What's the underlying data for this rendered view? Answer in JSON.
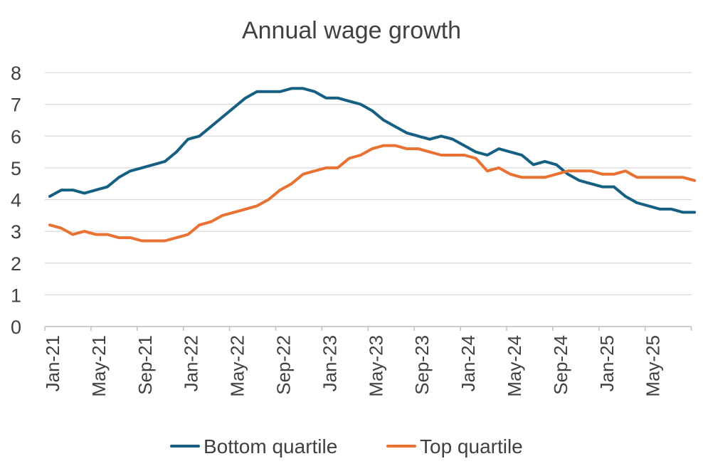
{
  "chart_data": {
    "type": "line",
    "title": "Annual wage growth",
    "xlabel": "",
    "ylabel": "",
    "ylim": [
      0,
      8
    ],
    "yticks": [
      "0",
      "1",
      "2",
      "3",
      "4",
      "5",
      "6",
      "7",
      "8"
    ],
    "x": [
      "Jan-21",
      "Feb-21",
      "Mar-21",
      "Apr-21",
      "May-21",
      "Jun-21",
      "Jul-21",
      "Aug-21",
      "Sep-21",
      "Oct-21",
      "Nov-21",
      "Dec-21",
      "Jan-22",
      "Feb-22",
      "Mar-22",
      "Apr-22",
      "May-22",
      "Jun-22",
      "Jul-22",
      "Aug-22",
      "Sep-22",
      "Oct-22",
      "Nov-22",
      "Dec-22",
      "Jan-23",
      "Feb-23",
      "Mar-23",
      "Apr-23",
      "May-23",
      "Jun-23",
      "Jul-23",
      "Aug-23",
      "Sep-23",
      "Oct-23",
      "Nov-23",
      "Dec-23",
      "Jan-24",
      "Feb-24",
      "Mar-24",
      "Apr-24",
      "May-24",
      "Jun-24",
      "Jul-24",
      "Aug-24",
      "Sep-24",
      "Oct-24",
      "Nov-24",
      "Dec-24",
      "Jan-25",
      "Feb-25",
      "Mar-25",
      "Apr-25",
      "May-25",
      "Jun-25",
      "Jul-25",
      "Aug-25",
      "Sep-25"
    ],
    "xtick_labels": [
      "Jan-21",
      "May-21",
      "Sep-21",
      "Jan-22",
      "May-22",
      "Sep-22",
      "Jan-23",
      "May-23",
      "Sep-23",
      "Jan-24",
      "May-24",
      "Sep-24",
      "Jan-25",
      "May-25"
    ],
    "series": [
      {
        "name": "Bottom quartile",
        "color": "#156082",
        "values": [
          4.1,
          4.3,
          4.3,
          4.2,
          4.3,
          4.4,
          4.7,
          4.9,
          5.0,
          5.1,
          5.2,
          5.5,
          5.9,
          6.0,
          6.3,
          6.6,
          6.9,
          7.2,
          7.4,
          7.4,
          7.4,
          7.5,
          7.5,
          7.4,
          7.2,
          7.2,
          7.1,
          7.0,
          6.8,
          6.5,
          6.3,
          6.1,
          6.0,
          5.9,
          6.0,
          5.9,
          5.7,
          5.5,
          5.4,
          5.6,
          5.5,
          5.4,
          5.1,
          5.2,
          5.1,
          4.8,
          4.6,
          4.5,
          4.4,
          4.4,
          4.1,
          3.9,
          3.8,
          3.7,
          3.7,
          3.6,
          3.6
        ]
      },
      {
        "name": "Top quartile",
        "color": "#E97132",
        "values": [
          3.2,
          3.1,
          2.9,
          3.0,
          2.9,
          2.9,
          2.8,
          2.8,
          2.7,
          2.7,
          2.7,
          2.8,
          2.9,
          3.2,
          3.3,
          3.5,
          3.6,
          3.7,
          3.8,
          4.0,
          4.3,
          4.5,
          4.8,
          4.9,
          5.0,
          5.0,
          5.3,
          5.4,
          5.6,
          5.7,
          5.7,
          5.6,
          5.6,
          5.5,
          5.4,
          5.4,
          5.4,
          5.3,
          4.9,
          5.0,
          4.8,
          4.7,
          4.7,
          4.7,
          4.8,
          4.9,
          4.9,
          4.9,
          4.8,
          4.8,
          4.9,
          4.7,
          4.7,
          4.7,
          4.7,
          4.7,
          4.6
        ]
      }
    ],
    "grid": true,
    "legend_position": "bottom"
  }
}
